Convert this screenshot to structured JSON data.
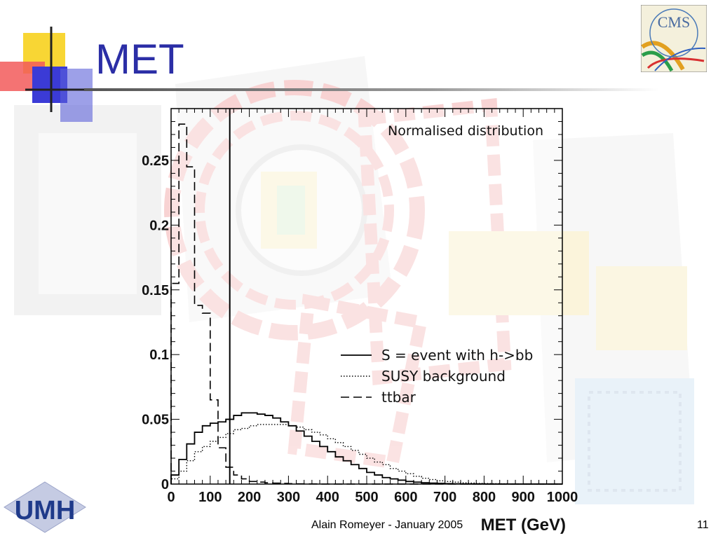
{
  "slide": {
    "title": "MET",
    "footer": "Alain Romeyer - January 2005",
    "page_number": "11"
  },
  "logos": {
    "cms_text": "CMS",
    "umh_text": "UMH"
  },
  "colors": {
    "title": "#2b2ea6",
    "decor_yellow": "#f7d21e",
    "decor_red": "#f25a5a",
    "decor_blue": "#3b3bd6",
    "axis": "#000000"
  },
  "chart_data": {
    "type": "line",
    "title": "Normalised distribution",
    "xlabel": "MET  (GeV)",
    "ylabel": "",
    "xlim": [
      0,
      1000
    ],
    "ylim": [
      0,
      0.29
    ],
    "xticks": [
      "0",
      "100",
      "200",
      "300",
      "400",
      "500",
      "600",
      "700",
      "800",
      "900",
      "1000"
    ],
    "yticks": [
      "0",
      "0.05",
      "0.1",
      "0.15",
      "0.2",
      "0.25"
    ],
    "cut": 150,
    "legend_position": "middle-right",
    "series": [
      {
        "name": "S = event with h->bb",
        "style": "solid",
        "x": [
          0,
          20,
          40,
          60,
          80,
          100,
          120,
          140,
          160,
          180,
          200,
          220,
          240,
          260,
          280,
          300,
          320,
          340,
          360,
          380,
          400,
          420,
          440,
          460,
          480,
          500,
          520,
          540,
          560,
          580,
          600,
          620,
          640,
          660,
          680,
          700,
          720,
          740,
          760,
          780,
          800,
          820,
          840,
          860,
          880,
          900,
          920,
          940,
          960,
          980
        ],
        "values": [
          0.007,
          0.019,
          0.031,
          0.04,
          0.045,
          0.047,
          0.048,
          0.05,
          0.053,
          0.055,
          0.055,
          0.054,
          0.053,
          0.051,
          0.048,
          0.045,
          0.041,
          0.037,
          0.033,
          0.029,
          0.025,
          0.021,
          0.018,
          0.015,
          0.012,
          0.009,
          0.007,
          0.005,
          0.004,
          0.003,
          0.002,
          0.0015,
          0.001,
          0.0007,
          0.0005,
          0.0003,
          0.0002,
          0.00015,
          0.0001,
          0.0001,
          0,
          0,
          0,
          0,
          0,
          0,
          0,
          0,
          0,
          0
        ]
      },
      {
        "name": "SUSY background",
        "style": "dotted",
        "x": [
          0,
          20,
          40,
          60,
          80,
          100,
          120,
          140,
          160,
          180,
          200,
          220,
          240,
          260,
          280,
          300,
          320,
          340,
          360,
          380,
          400,
          420,
          440,
          460,
          480,
          500,
          520,
          540,
          560,
          580,
          600,
          620,
          640,
          660,
          680,
          700,
          720,
          740,
          760,
          780,
          800,
          820,
          840,
          860,
          880,
          900,
          920,
          940,
          960,
          980
        ],
        "values": [
          0.004,
          0.01,
          0.018,
          0.025,
          0.029,
          0.033,
          0.036,
          0.039,
          0.042,
          0.043,
          0.045,
          0.046,
          0.046,
          0.046,
          0.046,
          0.045,
          0.044,
          0.042,
          0.04,
          0.038,
          0.035,
          0.032,
          0.029,
          0.026,
          0.023,
          0.02,
          0.017,
          0.015,
          0.012,
          0.01,
          0.008,
          0.006,
          0.0045,
          0.0035,
          0.0025,
          0.002,
          0.0015,
          0.001,
          0.0008,
          0.0005,
          0.0004,
          0.0003,
          0.0002,
          0.0001,
          0.0001,
          0,
          0,
          0,
          0,
          0
        ]
      },
      {
        "name": "ttbar",
        "style": "dashed",
        "x": [
          0,
          20,
          40,
          60,
          80,
          100,
          120,
          140,
          160,
          180,
          200,
          220,
          240,
          260,
          280,
          300,
          320,
          340,
          360,
          380,
          400,
          420,
          440,
          460,
          480,
          500,
          520,
          540,
          560,
          580,
          600,
          620,
          640,
          660,
          680,
          700,
          720,
          740,
          760,
          780,
          800,
          820,
          840,
          860,
          880,
          900,
          920,
          940,
          960,
          980
        ],
        "values": [
          0.155,
          0.278,
          0.245,
          0.138,
          0.132,
          0.065,
          0.028,
          0.013,
          0.007,
          0.004,
          0.002,
          0.0015,
          0.001,
          0.0007,
          0.0005,
          0.0003,
          0.0002,
          0.0001,
          0.0001,
          0,
          0,
          0,
          0,
          0,
          0,
          0,
          0,
          0,
          0,
          0,
          0,
          0,
          0,
          0,
          0,
          0,
          0,
          0,
          0,
          0,
          0,
          0,
          0,
          0,
          0,
          0,
          0,
          0,
          0,
          0
        ]
      }
    ]
  }
}
